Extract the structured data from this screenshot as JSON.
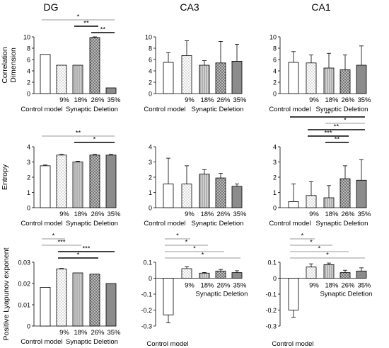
{
  "figure": {
    "col_titles": [
      "DG",
      "CA3",
      "CA1"
    ],
    "row_ylabels": [
      "Correlation\nDimension",
      "Entropy",
      "Positive Lyapunov exponent"
    ],
    "categories": [
      "Control model",
      "9%",
      "18%",
      "26%",
      "35%"
    ],
    "group_label": "Synaptic Deletion",
    "bar_patterns": [
      "none",
      "dots",
      "vlines",
      "crosshatch",
      "solid-dark"
    ],
    "colors": {
      "bar_edge": "#000000",
      "dark_fill": "#8c8c8c",
      "sig_line": "#000000",
      "grey_line": "#999999"
    }
  },
  "chart_data": [
    {
      "type": "bar",
      "panel": "DG-correlation-dimension",
      "title": "DG",
      "ylabel": "Correlation\nDimension",
      "xlabel": "Synaptic Deletion",
      "categories": [
        "Control model",
        "9%",
        "18%",
        "26%",
        "35%"
      ],
      "ylim": [
        0,
        10
      ],
      "yticks": [
        "0",
        "2",
        "4",
        "6",
        "8",
        "10"
      ],
      "ytick_values": [
        0,
        2,
        4,
        6,
        8,
        10
      ],
      "values": [
        6.9,
        5.0,
        5.0,
        9.9,
        1.0
      ],
      "errors": [
        0,
        0,
        0,
        0.1,
        0
      ],
      "significance": [
        {
          "from": 0,
          "to": 4,
          "label": "*",
          "style": "grey"
        },
        {
          "from": 2,
          "to": 3,
          "label": "**",
          "style": "black"
        },
        {
          "from": 3,
          "to": 4,
          "label": "**",
          "style": "black"
        }
      ]
    },
    {
      "type": "bar",
      "panel": "CA3-correlation-dimension",
      "title": "CA3",
      "ylabel": "",
      "xlabel": "Synaptic Deletion",
      "categories": [
        "Control model",
        "9%",
        "18%",
        "26%",
        "35%"
      ],
      "ylim": [
        0,
        10
      ],
      "yticks": [
        "0",
        "2",
        "4",
        "6",
        "8",
        "10"
      ],
      "ytick_values": [
        0,
        2,
        4,
        6,
        8,
        10
      ],
      "values": [
        5.5,
        6.7,
        5.0,
        5.4,
        5.7
      ],
      "errors": [
        1.7,
        2.6,
        0.8,
        3.8,
        3.0
      ],
      "significance": []
    },
    {
      "type": "bar",
      "panel": "CA1-correlation-dimension",
      "title": "CA1",
      "ylabel": "",
      "xlabel": "Synaptic Deletion",
      "categories": [
        "Control model",
        "9%",
        "18%",
        "26%",
        "35%"
      ],
      "ylim": [
        0,
        10
      ],
      "yticks": [
        "0",
        "2",
        "4",
        "6",
        "8",
        "10"
      ],
      "ytick_values": [
        0,
        2,
        4,
        6,
        8,
        10
      ],
      "values": [
        5.5,
        5.4,
        4.5,
        4.2,
        5.0
      ],
      "errors": [
        1.9,
        1.4,
        2.6,
        2.6,
        3.4
      ],
      "significance": []
    },
    {
      "type": "bar",
      "panel": "DG-entropy",
      "title": "",
      "ylabel": "Entropy",
      "xlabel": "Synaptic Deletion",
      "categories": [
        "Control model",
        "9%",
        "18%",
        "26%",
        "35%"
      ],
      "ylim": [
        0,
        4
      ],
      "yticks": [
        "0",
        "1",
        "2",
        "3",
        "4"
      ],
      "ytick_values": [
        0,
        1,
        2,
        3,
        4
      ],
      "values": [
        2.75,
        3.45,
        3.0,
        3.45,
        3.45
      ],
      "errors": [
        0.05,
        0.05,
        0.05,
        0.05,
        0.05
      ],
      "significance": [
        {
          "from": 0,
          "to": 4,
          "label": "**",
          "style": "grey"
        },
        {
          "from": 2,
          "to": 4,
          "label": "*",
          "style": "black"
        }
      ]
    },
    {
      "type": "bar",
      "panel": "CA3-entropy",
      "title": "",
      "ylabel": "",
      "xlabel": "Synaptic Deletion",
      "categories": [
        "Control model",
        "9%",
        "18%",
        "26%",
        "35%"
      ],
      "ylim": [
        0,
        4
      ],
      "yticks": [
        "0",
        "1",
        "2",
        "3",
        "4"
      ],
      "ytick_values": [
        0,
        1,
        2,
        3,
        4
      ],
      "values": [
        1.55,
        1.55,
        2.2,
        1.95,
        1.4
      ],
      "errors": [
        1.7,
        1.2,
        0.3,
        0.3,
        0.15
      ],
      "significance": []
    },
    {
      "type": "bar",
      "panel": "CA1-entropy",
      "title": "",
      "ylabel": "",
      "xlabel": "Synaptic Deletion",
      "categories": [
        "Control model",
        "9%",
        "18%",
        "26%",
        "35%"
      ],
      "ylim": [
        0,
        4
      ],
      "yticks": [
        "0",
        "1",
        "2",
        "3",
        "4"
      ],
      "ytick_values": [
        0,
        1,
        2,
        3,
        4
      ],
      "values": [
        0.4,
        0.8,
        0.65,
        1.9,
        1.8
      ],
      "errors": [
        1.15,
        0.9,
        0.8,
        0.85,
        1.35
      ],
      "significance": [
        {
          "from": 0,
          "to": 4,
          "label": "**",
          "style": "black"
        },
        {
          "from": 2,
          "to": 4,
          "label": "*",
          "style": "grey"
        },
        {
          "from": 1,
          "to": 4,
          "label": "**",
          "style": "black"
        },
        {
          "from": 1,
          "to": 3,
          "label": "***",
          "style": "black"
        },
        {
          "from": 2,
          "to": 3,
          "label": "**",
          "style": "black"
        }
      ]
    },
    {
      "type": "bar",
      "panel": "DG-lyapunov",
      "title": "",
      "ylabel": "Positive Lyapunov exponent",
      "xlabel": "Synaptic Deletion",
      "categories": [
        "Control model",
        "9%",
        "18%",
        "26%",
        "35%"
      ],
      "ylim": [
        0,
        0.03
      ],
      "yticks": [
        "0",
        "0.01",
        "0.02",
        "0.03"
      ],
      "ytick_values": [
        0,
        0.01,
        0.02,
        0.03
      ],
      "values": [
        0.0182,
        0.0268,
        0.025,
        0.0244,
        0.02
      ],
      "errors": [
        0,
        0.0003,
        0,
        0,
        0
      ],
      "significance": [
        {
          "from": 0,
          "to": 1,
          "label": "*",
          "style": "grey"
        },
        {
          "from": 0,
          "to": 2,
          "label": "***",
          "style": "grey"
        },
        {
          "from": 1,
          "to": 4,
          "label": "***",
          "style": "black"
        },
        {
          "from": 1,
          "to": 3,
          "label": "*",
          "style": "black"
        }
      ]
    },
    {
      "type": "bar",
      "panel": "CA3-lyapunov",
      "title": "",
      "ylabel": "",
      "xlabel": "Synaptic Deletion",
      "categories": [
        "Control model",
        "9%",
        "18%",
        "26%",
        "35%"
      ],
      "ylim": [
        -0.3,
        0.1
      ],
      "yticks": [
        "-0.3",
        "-0.2",
        "-0.1",
        "0",
        "0.1"
      ],
      "ytick_values": [
        -0.3,
        -0.2,
        -0.1,
        0,
        0.1
      ],
      "values": [
        -0.23,
        0.06,
        0.032,
        0.045,
        0.035
      ],
      "errors": [
        0.05,
        0.012,
        0.004,
        0.01,
        0.012
      ],
      "significance": [
        {
          "from": 0,
          "to": 1,
          "label": "*",
          "style": "grey"
        },
        {
          "from": 0,
          "to": 2,
          "label": "*",
          "style": "grey"
        },
        {
          "from": 0,
          "to": 3,
          "label": "*",
          "style": "grey"
        },
        {
          "from": 0,
          "to": 4,
          "label": "*",
          "style": "grey"
        }
      ]
    },
    {
      "type": "bar",
      "panel": "CA1-lyapunov",
      "title": "",
      "ylabel": "",
      "xlabel": "Synaptic Deletion",
      "categories": [
        "Control model",
        "9%",
        "18%",
        "26%",
        "35%"
      ],
      "ylim": [
        -0.3,
        0.1
      ],
      "yticks": [
        "-0.3",
        "-0.2",
        "-0.1",
        "0",
        "0.1"
      ],
      "ytick_values": [
        -0.3,
        -0.2,
        -0.1,
        0,
        0.1
      ],
      "values": [
        -0.2,
        0.07,
        0.085,
        0.035,
        0.045
      ],
      "errors": [
        0.045,
        0.02,
        0.01,
        0.015,
        0.02
      ],
      "significance": [
        {
          "from": 0,
          "to": 1,
          "label": "*",
          "style": "grey"
        },
        {
          "from": 0,
          "to": 2,
          "label": "*",
          "style": "grey"
        },
        {
          "from": 0,
          "to": 3,
          "label": "*",
          "style": "grey"
        },
        {
          "from": 0,
          "to": 4,
          "label": "*",
          "style": "grey"
        }
      ]
    }
  ]
}
